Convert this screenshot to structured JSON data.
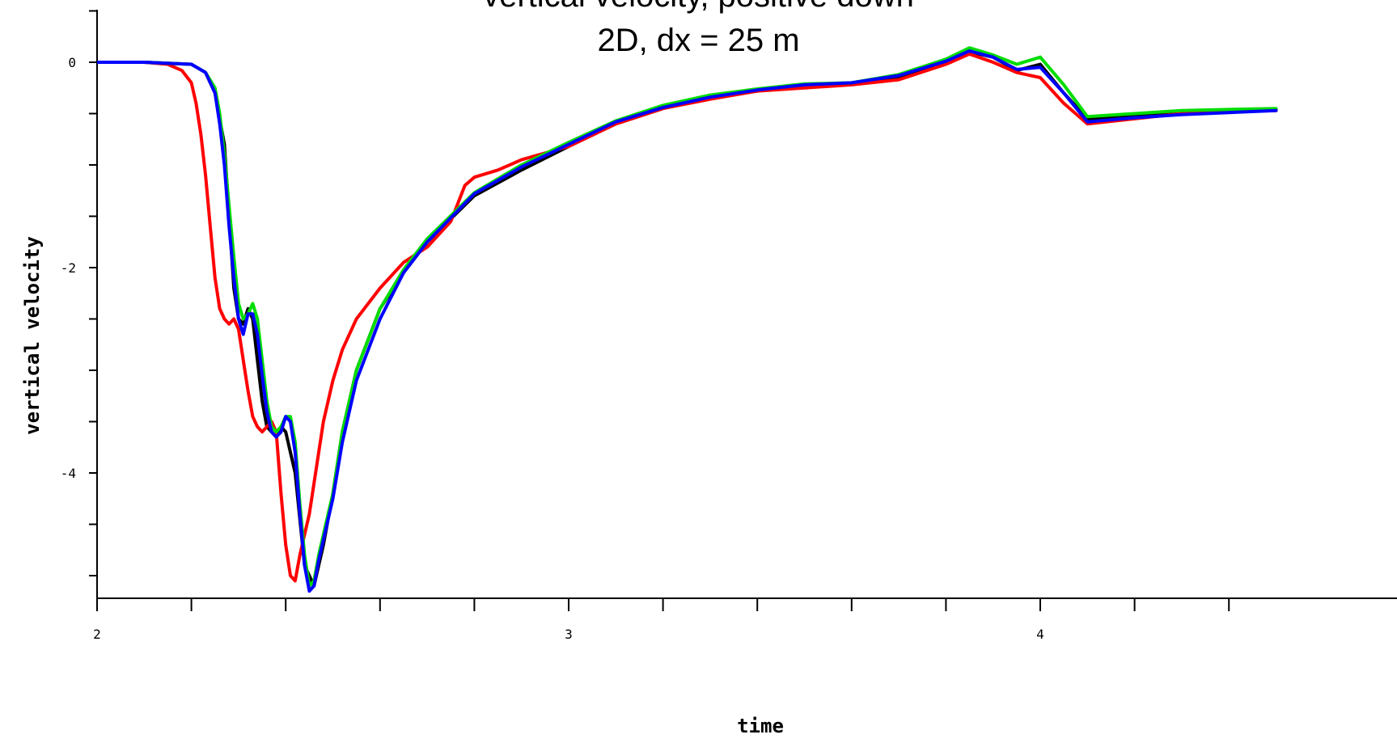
{
  "chart_data": {
    "type": "line",
    "title": "vertical velocity, positive down",
    "subtitle": "2D, dx = 25 m",
    "xlabel": "time",
    "ylabel": "vertical velocity",
    "xlim": [
      2,
      4.5
    ],
    "ylim": [
      -5.2,
      1
    ],
    "x_ticks": [
      2,
      3,
      4
    ],
    "x_tick_labels": [
      "2",
      "3",
      "4"
    ],
    "x_minor_step": 0.2,
    "y_ticks": [
      0,
      -2,
      -4
    ],
    "y_tick_labels": [
      "0",
      "-2",
      "-4"
    ],
    "y_minor_step": 0.5,
    "grid": false,
    "series": [
      {
        "color": "#000000",
        "x": [
          2.0,
          2.1,
          2.2,
          2.23,
          2.25,
          2.27,
          2.28,
          2.29,
          2.3,
          2.31,
          2.32,
          2.33,
          2.34,
          2.35,
          2.36,
          2.37,
          2.38,
          2.39,
          2.4,
          2.42,
          2.44,
          2.46,
          2.48,
          2.5,
          2.52,
          2.55,
          2.6,
          2.65,
          2.7,
          2.8,
          2.9,
          3.0,
          3.1,
          3.2,
          3.3,
          3.4,
          3.5,
          3.6,
          3.7,
          3.8,
          3.85,
          3.9,
          3.95,
          4.0,
          4.05,
          4.1,
          4.2,
          4.3,
          4.4,
          4.5
        ],
        "y": [
          0,
          0,
          -0.02,
          -0.1,
          -0.3,
          -0.8,
          -1.5,
          -2.2,
          -2.5,
          -2.55,
          -2.4,
          -2.5,
          -2.9,
          -3.3,
          -3.55,
          -3.6,
          -3.65,
          -3.55,
          -3.6,
          -4.0,
          -4.9,
          -5.1,
          -4.7,
          -4.2,
          -3.6,
          -3.0,
          -2.4,
          -2.05,
          -1.75,
          -1.3,
          -1.05,
          -0.82,
          -0.6,
          -0.45,
          -0.35,
          -0.28,
          -0.22,
          -0.2,
          -0.15,
          0.0,
          0.1,
          0.05,
          -0.08,
          -0.02,
          -0.3,
          -0.55,
          -0.52,
          -0.5,
          -0.48,
          -0.46
        ]
      },
      {
        "color": "#ff0000",
        "x": [
          2.0,
          2.1,
          2.15,
          2.18,
          2.2,
          2.21,
          2.22,
          2.23,
          2.24,
          2.25,
          2.26,
          2.27,
          2.28,
          2.29,
          2.3,
          2.31,
          2.32,
          2.33,
          2.34,
          2.35,
          2.36,
          2.37,
          2.38,
          2.39,
          2.4,
          2.41,
          2.42,
          2.43,
          2.44,
          2.45,
          2.46,
          2.47,
          2.48,
          2.5,
          2.52,
          2.55,
          2.6,
          2.65,
          2.7,
          2.75,
          2.78,
          2.8,
          2.85,
          2.9,
          3.0,
          3.1,
          3.2,
          3.3,
          3.4,
          3.5,
          3.6,
          3.7,
          3.8,
          3.85,
          3.9,
          3.95,
          4.0,
          4.05,
          4.1,
          4.2,
          4.3,
          4.4,
          4.5
        ],
        "y": [
          0,
          0,
          -0.02,
          -0.08,
          -0.2,
          -0.4,
          -0.7,
          -1.1,
          -1.6,
          -2.1,
          -2.4,
          -2.5,
          -2.55,
          -2.5,
          -2.6,
          -2.9,
          -3.2,
          -3.45,
          -3.55,
          -3.6,
          -3.55,
          -3.5,
          -3.6,
          -4.2,
          -4.7,
          -5.0,
          -5.05,
          -4.8,
          -4.6,
          -4.4,
          -4.1,
          -3.8,
          -3.5,
          -3.1,
          -2.8,
          -2.5,
          -2.2,
          -1.95,
          -1.8,
          -1.55,
          -1.2,
          -1.12,
          -1.05,
          -0.95,
          -0.82,
          -0.6,
          -0.45,
          -0.36,
          -0.28,
          -0.25,
          -0.22,
          -0.17,
          -0.02,
          0.08,
          0.0,
          -0.1,
          -0.15,
          -0.4,
          -0.6,
          -0.55,
          -0.5,
          -0.48,
          -0.47
        ]
      },
      {
        "color": "#00dd00",
        "x": [
          2.0,
          2.1,
          2.2,
          2.23,
          2.25,
          2.26,
          2.27,
          2.28,
          2.29,
          2.3,
          2.31,
          2.32,
          2.33,
          2.34,
          2.35,
          2.36,
          2.37,
          2.38,
          2.39,
          2.4,
          2.41,
          2.42,
          2.43,
          2.44,
          2.45,
          2.46,
          2.47,
          2.48,
          2.5,
          2.52,
          2.55,
          2.6,
          2.65,
          2.7,
          2.8,
          2.9,
          3.0,
          3.1,
          3.2,
          3.3,
          3.4,
          3.5,
          3.6,
          3.7,
          3.8,
          3.85,
          3.9,
          3.95,
          4.0,
          4.05,
          4.1,
          4.2,
          4.3,
          4.4,
          4.5
        ],
        "y": [
          0,
          0,
          -0.02,
          -0.1,
          -0.25,
          -0.5,
          -0.9,
          -1.4,
          -1.9,
          -2.35,
          -2.5,
          -2.45,
          -2.35,
          -2.5,
          -2.9,
          -3.3,
          -3.55,
          -3.6,
          -3.55,
          -3.45,
          -3.45,
          -3.7,
          -4.3,
          -4.8,
          -5.1,
          -5.05,
          -4.8,
          -4.6,
          -4.2,
          -3.6,
          -3.0,
          -2.4,
          -2.02,
          -1.72,
          -1.27,
          -1.0,
          -0.78,
          -0.57,
          -0.42,
          -0.32,
          -0.26,
          -0.21,
          -0.2,
          -0.12,
          0.03,
          0.14,
          0.07,
          -0.02,
          0.05,
          -0.22,
          -0.53,
          -0.5,
          -0.47,
          -0.46,
          -0.45
        ]
      },
      {
        "color": "#0000ff",
        "x": [
          2.0,
          2.1,
          2.2,
          2.23,
          2.25,
          2.26,
          2.27,
          2.28,
          2.29,
          2.3,
          2.31,
          2.32,
          2.33,
          2.34,
          2.35,
          2.36,
          2.37,
          2.38,
          2.39,
          2.4,
          2.41,
          2.42,
          2.43,
          2.44,
          2.45,
          2.46,
          2.47,
          2.48,
          2.5,
          2.52,
          2.55,
          2.6,
          2.65,
          2.7,
          2.8,
          2.9,
          3.0,
          3.1,
          3.2,
          3.3,
          3.4,
          3.5,
          3.6,
          3.7,
          3.8,
          3.85,
          3.9,
          3.95,
          4.0,
          4.05,
          4.1,
          4.2,
          4.3,
          4.4,
          4.5
        ],
        "y": [
          0,
          0,
          -0.02,
          -0.1,
          -0.3,
          -0.6,
          -1.0,
          -1.6,
          -2.1,
          -2.5,
          -2.65,
          -2.45,
          -2.45,
          -2.65,
          -3.05,
          -3.4,
          -3.6,
          -3.65,
          -3.6,
          -3.45,
          -3.5,
          -3.8,
          -4.4,
          -4.9,
          -5.15,
          -5.1,
          -4.85,
          -4.65,
          -4.25,
          -3.7,
          -3.1,
          -2.5,
          -2.05,
          -1.75,
          -1.28,
          -1.02,
          -0.8,
          -0.58,
          -0.44,
          -0.34,
          -0.27,
          -0.22,
          -0.2,
          -0.13,
          0.01,
          0.11,
          0.05,
          -0.07,
          -0.05,
          -0.3,
          -0.58,
          -0.54,
          -0.51,
          -0.49,
          -0.47
        ]
      }
    ]
  }
}
